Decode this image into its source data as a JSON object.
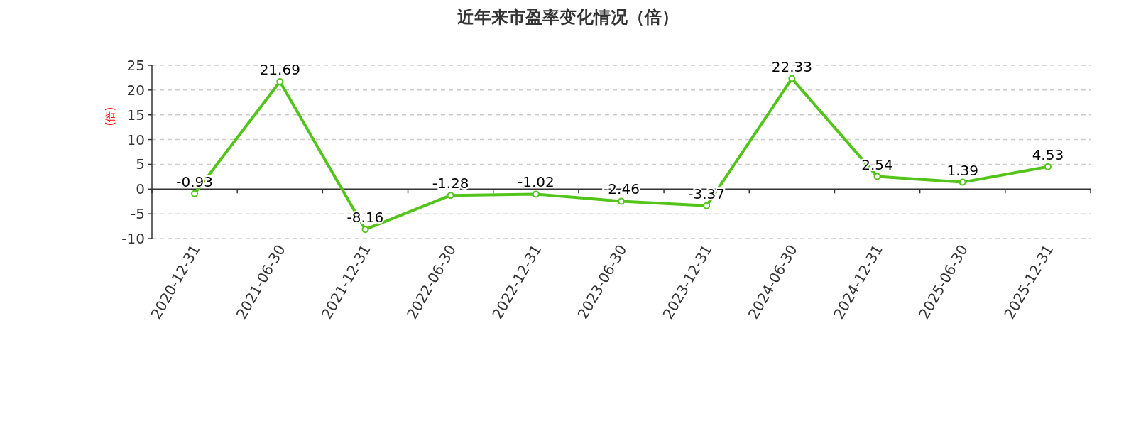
{
  "chart_data": {
    "type": "line",
    "title": "近年来市盈率变化情况（倍）",
    "ylabel": "(倍)",
    "categories": [
      "2020-12-31",
      "2021-06-30",
      "2021-12-31",
      "2022-06-30",
      "2022-12-31",
      "2023-06-30",
      "2023-12-31",
      "2024-06-30",
      "2024-12-31",
      "2025-06-30",
      "2025-12-31"
    ],
    "series": [
      {
        "color": "#52c41a",
        "values": [
          -0.93,
          21.69,
          -8.16,
          -1.28,
          -1.02,
          -2.46,
          -3.37,
          22.33,
          2.54,
          1.39,
          4.53
        ]
      }
    ],
    "ylim": [
      -10,
      25
    ],
    "yticks": [
      -10,
      -5,
      0,
      5,
      10,
      15,
      20,
      25
    ],
    "grid": "y",
    "data_labels": true,
    "marker": "circle",
    "line_style": "solid"
  }
}
